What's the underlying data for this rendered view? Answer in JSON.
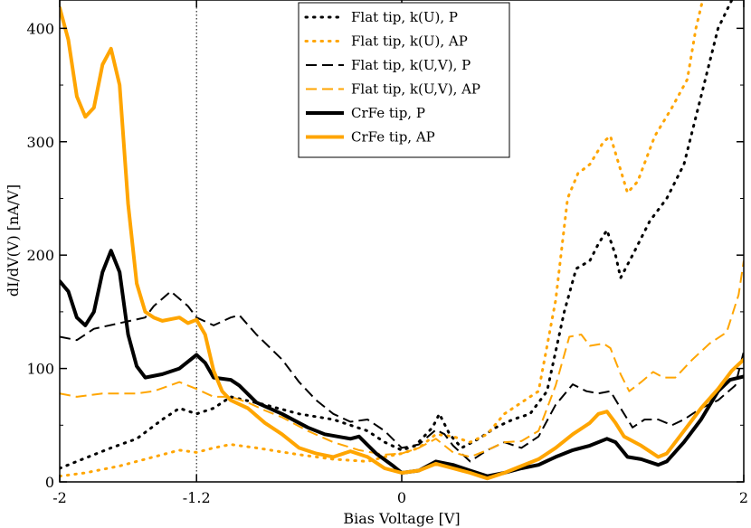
{
  "chart_data": {
    "type": "line",
    "title": "",
    "xlabel": "Bias Voltage [V]",
    "ylabel": "dI/dV(V) [nA/V]",
    "xlim": [
      -2,
      2
    ],
    "ylim": [
      0,
      425
    ],
    "x_ticks": [
      -2,
      -1.2,
      0,
      2
    ],
    "x_tick_labels": [
      "-2",
      "-1.2",
      "0",
      "2"
    ],
    "y_ticks": [
      0,
      100,
      200,
      300,
      400
    ],
    "y_tick_labels": [
      "0",
      "100",
      "200",
      "300",
      "400"
    ],
    "grid": false,
    "reference_line_x": -1.2,
    "legend_position": "top-center",
    "series": [
      {
        "name": "Flat tip, k(U), P",
        "color": "#000000",
        "style": "dotted",
        "width": 3,
        "points": [
          [
            -2,
            12
          ],
          [
            -1.9,
            18
          ],
          [
            -1.7,
            30
          ],
          [
            -1.55,
            38
          ],
          [
            -1.4,
            55
          ],
          [
            -1.3,
            65
          ],
          [
            -1.2,
            60
          ],
          [
            -1.1,
            65
          ],
          [
            -1.0,
            75
          ],
          [
            -0.8,
            68
          ],
          [
            -0.6,
            60
          ],
          [
            -0.4,
            55
          ],
          [
            -0.2,
            45
          ],
          [
            -0.1,
            35
          ],
          [
            0,
            28
          ],
          [
            0.08,
            32
          ],
          [
            0.18,
            48
          ],
          [
            0.22,
            60
          ],
          [
            0.28,
            42
          ],
          [
            0.35,
            30
          ],
          [
            0.45,
            38
          ],
          [
            0.55,
            48
          ],
          [
            0.65,
            55
          ],
          [
            0.75,
            60
          ],
          [
            0.85,
            80
          ],
          [
            0.95,
            150
          ],
          [
            1.02,
            188
          ],
          [
            1.1,
            195
          ],
          [
            1.15,
            210
          ],
          [
            1.2,
            222
          ],
          [
            1.25,
            200
          ],
          [
            1.28,
            180
          ],
          [
            1.35,
            200
          ],
          [
            1.45,
            230
          ],
          [
            1.55,
            250
          ],
          [
            1.65,
            280
          ],
          [
            1.75,
            340
          ],
          [
            1.85,
            400
          ],
          [
            1.93,
            425
          ]
        ]
      },
      {
        "name": "Flat tip, k(U), AP",
        "color": "#ffa500",
        "style": "dotted",
        "width": 3,
        "points": [
          [
            -2,
            5
          ],
          [
            -1.85,
            8
          ],
          [
            -1.65,
            14
          ],
          [
            -1.45,
            22
          ],
          [
            -1.3,
            28
          ],
          [
            -1.2,
            26
          ],
          [
            -1.1,
            30
          ],
          [
            -1.0,
            33
          ],
          [
            -0.85,
            30
          ],
          [
            -0.6,
            24
          ],
          [
            -0.4,
            20
          ],
          [
            -0.2,
            18
          ],
          [
            -0.1,
            22
          ],
          [
            0,
            25
          ],
          [
            0.1,
            30
          ],
          [
            0.2,
            42
          ],
          [
            0.3,
            40
          ],
          [
            0.4,
            35
          ],
          [
            0.5,
            42
          ],
          [
            0.6,
            60
          ],
          [
            0.7,
            70
          ],
          [
            0.8,
            80
          ],
          [
            0.9,
            160
          ],
          [
            0.97,
            250
          ],
          [
            1.03,
            272
          ],
          [
            1.1,
            280
          ],
          [
            1.18,
            300
          ],
          [
            1.22,
            305
          ],
          [
            1.27,
            280
          ],
          [
            1.32,
            255
          ],
          [
            1.38,
            265
          ],
          [
            1.48,
            305
          ],
          [
            1.58,
            330
          ],
          [
            1.67,
            355
          ],
          [
            1.72,
            400
          ],
          [
            1.76,
            425
          ]
        ]
      },
      {
        "name": "Flat tip, k(U,V), P",
        "color": "#000000",
        "style": "dashed",
        "width": 2,
        "points": [
          [
            -2,
            128
          ],
          [
            -1.9,
            125
          ],
          [
            -1.8,
            135
          ],
          [
            -1.65,
            140
          ],
          [
            -1.5,
            145
          ],
          [
            -1.45,
            155
          ],
          [
            -1.35,
            168
          ],
          [
            -1.25,
            155
          ],
          [
            -1.2,
            145
          ],
          [
            -1.1,
            138
          ],
          [
            -1.0,
            145
          ],
          [
            -0.95,
            147
          ],
          [
            -0.85,
            130
          ],
          [
            -0.7,
            108
          ],
          [
            -0.6,
            88
          ],
          [
            -0.5,
            72
          ],
          [
            -0.4,
            60
          ],
          [
            -0.3,
            53
          ],
          [
            -0.2,
            55
          ],
          [
            -0.1,
            45
          ],
          [
            0,
            30
          ],
          [
            0.1,
            33
          ],
          [
            0.2,
            46
          ],
          [
            0.25,
            42
          ],
          [
            0.3,
            32
          ],
          [
            0.4,
            18
          ],
          [
            0.5,
            28
          ],
          [
            0.6,
            35
          ],
          [
            0.7,
            30
          ],
          [
            0.8,
            40
          ],
          [
            0.9,
            68
          ],
          [
            1.0,
            86
          ],
          [
            1.08,
            80
          ],
          [
            1.15,
            78
          ],
          [
            1.22,
            80
          ],
          [
            1.28,
            65
          ],
          [
            1.35,
            48
          ],
          [
            1.42,
            55
          ],
          [
            1.5,
            55
          ],
          [
            1.58,
            50
          ],
          [
            1.65,
            55
          ],
          [
            1.75,
            65
          ],
          [
            1.85,
            72
          ],
          [
            1.95,
            85
          ],
          [
            2.0,
            115
          ]
        ]
      },
      {
        "name": "Flat tip, k(U,V), AP",
        "color": "#ffa500",
        "style": "dashed",
        "width": 2,
        "points": [
          [
            -2,
            78
          ],
          [
            -1.9,
            75
          ],
          [
            -1.75,
            78
          ],
          [
            -1.55,
            78
          ],
          [
            -1.45,
            80
          ],
          [
            -1.3,
            88
          ],
          [
            -1.2,
            82
          ],
          [
            -1.1,
            75
          ],
          [
            -1.0,
            75
          ],
          [
            -0.9,
            70
          ],
          [
            -0.8,
            63
          ],
          [
            -0.7,
            57
          ],
          [
            -0.55,
            45
          ],
          [
            -0.4,
            35
          ],
          [
            -0.25,
            28
          ],
          [
            -0.1,
            24
          ],
          [
            0,
            25
          ],
          [
            0.1,
            30
          ],
          [
            0.2,
            38
          ],
          [
            0.3,
            26
          ],
          [
            0.4,
            22
          ],
          [
            0.5,
            28
          ],
          [
            0.6,
            35
          ],
          [
            0.7,
            36
          ],
          [
            0.8,
            45
          ],
          [
            0.9,
            85
          ],
          [
            0.98,
            128
          ],
          [
            1.05,
            130
          ],
          [
            1.1,
            120
          ],
          [
            1.18,
            122
          ],
          [
            1.22,
            118
          ],
          [
            1.28,
            95
          ],
          [
            1.33,
            80
          ],
          [
            1.4,
            88
          ],
          [
            1.47,
            97
          ],
          [
            1.53,
            92
          ],
          [
            1.6,
            92
          ],
          [
            1.7,
            108
          ],
          [
            1.8,
            122
          ],
          [
            1.9,
            132
          ],
          [
            1.97,
            165
          ],
          [
            2.0,
            195
          ]
        ]
      },
      {
        "name": "CrFe tip, P",
        "color": "#000000",
        "style": "solid",
        "width": 4,
        "points": [
          [
            -2,
            177
          ],
          [
            -1.95,
            168
          ],
          [
            -1.9,
            145
          ],
          [
            -1.85,
            138
          ],
          [
            -1.8,
            150
          ],
          [
            -1.75,
            185
          ],
          [
            -1.7,
            204
          ],
          [
            -1.65,
            185
          ],
          [
            -1.6,
            130
          ],
          [
            -1.55,
            102
          ],
          [
            -1.5,
            92
          ],
          [
            -1.4,
            95
          ],
          [
            -1.3,
            100
          ],
          [
            -1.2,
            112
          ],
          [
            -1.15,
            105
          ],
          [
            -1.1,
            92
          ],
          [
            -1.0,
            90
          ],
          [
            -0.95,
            85
          ],
          [
            -0.85,
            70
          ],
          [
            -0.7,
            60
          ],
          [
            -0.55,
            48
          ],
          [
            -0.45,
            42
          ],
          [
            -0.3,
            38
          ],
          [
            -0.25,
            40
          ],
          [
            -0.15,
            25
          ],
          [
            -0.05,
            14
          ],
          [
            0,
            8
          ],
          [
            0.1,
            10
          ],
          [
            0.2,
            18
          ],
          [
            0.3,
            15
          ],
          [
            0.4,
            10
          ],
          [
            0.5,
            5
          ],
          [
            0.6,
            8
          ],
          [
            0.7,
            12
          ],
          [
            0.8,
            15
          ],
          [
            0.9,
            22
          ],
          [
            1.0,
            28
          ],
          [
            1.1,
            32
          ],
          [
            1.2,
            38
          ],
          [
            1.25,
            35
          ],
          [
            1.32,
            22
          ],
          [
            1.4,
            20
          ],
          [
            1.5,
            15
          ],
          [
            1.55,
            18
          ],
          [
            1.65,
            35
          ],
          [
            1.75,
            55
          ],
          [
            1.85,
            80
          ],
          [
            1.92,
            90
          ],
          [
            2.0,
            93
          ]
        ]
      },
      {
        "name": "CrFe tip, AP",
        "color": "#ffa500",
        "style": "solid",
        "width": 4,
        "points": [
          [
            -2,
            418
          ],
          [
            -1.95,
            390
          ],
          [
            -1.9,
            340
          ],
          [
            -1.85,
            322
          ],
          [
            -1.8,
            330
          ],
          [
            -1.75,
            368
          ],
          [
            -1.7,
            382
          ],
          [
            -1.65,
            350
          ],
          [
            -1.6,
            245
          ],
          [
            -1.55,
            175
          ],
          [
            -1.5,
            150
          ],
          [
            -1.45,
            145
          ],
          [
            -1.4,
            142
          ],
          [
            -1.3,
            145
          ],
          [
            -1.25,
            140
          ],
          [
            -1.2,
            143
          ],
          [
            -1.15,
            130
          ],
          [
            -1.1,
            98
          ],
          [
            -1.05,
            80
          ],
          [
            -1.0,
            72
          ],
          [
            -0.9,
            65
          ],
          [
            -0.8,
            52
          ],
          [
            -0.7,
            42
          ],
          [
            -0.6,
            30
          ],
          [
            -0.5,
            25
          ],
          [
            -0.4,
            22
          ],
          [
            -0.3,
            27
          ],
          [
            -0.2,
            22
          ],
          [
            -0.1,
            12
          ],
          [
            0,
            8
          ],
          [
            0.1,
            10
          ],
          [
            0.2,
            16
          ],
          [
            0.3,
            12
          ],
          [
            0.4,
            8
          ],
          [
            0.5,
            3
          ],
          [
            0.6,
            8
          ],
          [
            0.7,
            14
          ],
          [
            0.8,
            20
          ],
          [
            0.9,
            30
          ],
          [
            1.0,
            42
          ],
          [
            1.1,
            52
          ],
          [
            1.15,
            60
          ],
          [
            1.2,
            62
          ],
          [
            1.25,
            52
          ],
          [
            1.3,
            40
          ],
          [
            1.4,
            32
          ],
          [
            1.5,
            22
          ],
          [
            1.55,
            25
          ],
          [
            1.65,
            45
          ],
          [
            1.75,
            65
          ],
          [
            1.85,
            82
          ],
          [
            1.93,
            98
          ],
          [
            2.0,
            108
          ]
        ]
      }
    ]
  }
}
